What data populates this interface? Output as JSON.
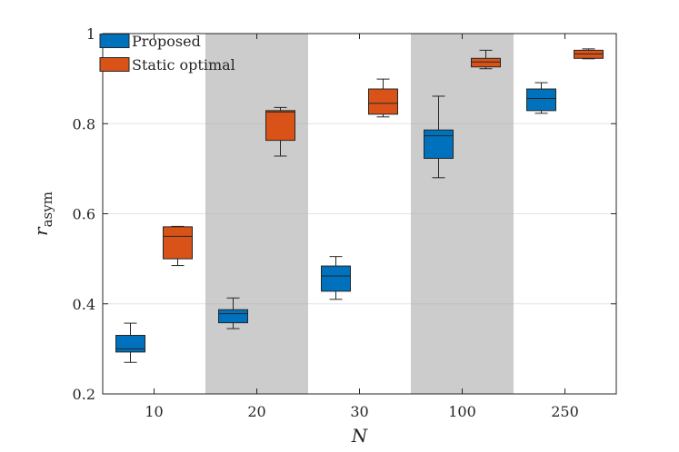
{
  "chart_data": {
    "type": "boxplot",
    "xlabel": "N",
    "ylabel_main": "r",
    "ylabel_sub": "asym",
    "ylim": [
      0.2,
      1.0
    ],
    "yticks": [
      0.2,
      0.4,
      0.6,
      0.8,
      1.0
    ],
    "ytick_labels": [
      "0.2",
      "0.4",
      "0.6",
      "0.8",
      "1"
    ],
    "categories": [
      "10",
      "20",
      "30",
      "100",
      "250"
    ],
    "shaded_categories": [
      "20",
      "100"
    ],
    "grid": true,
    "legend_position": "top-left",
    "series": [
      {
        "name": "Proposed",
        "color": "#0072BD",
        "boxes": [
          {
            "whisker_low": 0.27,
            "q1": 0.293,
            "median": 0.3,
            "q3": 0.33,
            "whisker_high": 0.357
          },
          {
            "whisker_low": 0.345,
            "q1": 0.358,
            "median": 0.378,
            "q3": 0.387,
            "whisker_high": 0.413
          },
          {
            "whisker_low": 0.41,
            "q1": 0.428,
            "median": 0.462,
            "q3": 0.484,
            "whisker_high": 0.505
          },
          {
            "whisker_low": 0.68,
            "q1": 0.723,
            "median": 0.773,
            "q3": 0.786,
            "whisker_high": 0.861
          },
          {
            "whisker_low": 0.823,
            "q1": 0.829,
            "median": 0.856,
            "q3": 0.877,
            "whisker_high": 0.891
          }
        ]
      },
      {
        "name": "Static optimal",
        "color": "#D95319",
        "boxes": [
          {
            "whisker_low": 0.485,
            "q1": 0.5,
            "median": 0.55,
            "q3": 0.571,
            "whisker_high": 0.572
          },
          {
            "whisker_low": 0.728,
            "q1": 0.763,
            "median": 0.826,
            "q3": 0.829,
            "whisker_high": 0.836
          },
          {
            "whisker_low": 0.815,
            "q1": 0.821,
            "median": 0.845,
            "q3": 0.877,
            "whisker_high": 0.899
          },
          {
            "whisker_low": 0.922,
            "q1": 0.926,
            "median": 0.937,
            "q3": 0.945,
            "whisker_high": 0.963
          },
          {
            "whisker_low": 0.944,
            "q1": 0.945,
            "median": 0.955,
            "q3": 0.963,
            "whisker_high": 0.966
          }
        ]
      }
    ]
  }
}
